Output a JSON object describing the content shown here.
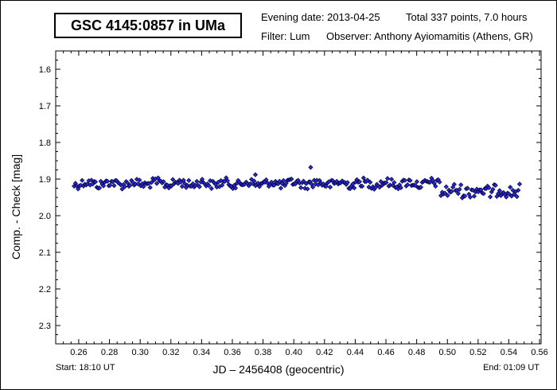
{
  "header": {
    "title": "GSC 4145:0857 in UMa",
    "evening_date": "Evening date: 2013-04-25",
    "total": "Total 337 points, 7.0 hours",
    "filter": "Filter: Lum",
    "observer": "Observer: Anthony Ayiomamitis (Athens, GR)"
  },
  "footer": {
    "start": "Start: 18:10 UT",
    "end": "End: 01:09 UT"
  },
  "colors": {
    "points": "#2b2bd6",
    "point_edge": "#00003a"
  },
  "chart_data": {
    "type": "scatter",
    "title": "GSC 4145:0857 in UMa",
    "xlabel": "JD – 2456408  (geocentric)",
    "ylabel": "Comp. - Check [mag]",
    "xlim": [
      0.245,
      0.561
    ],
    "ylim": [
      1.55,
      2.35
    ],
    "y_inverted": true,
    "grid": false,
    "x_ticks": [
      0.26,
      0.28,
      0.3,
      0.32,
      0.34,
      0.36,
      0.38,
      0.4,
      0.42,
      0.44,
      0.46,
      0.48,
      0.5,
      0.52,
      0.54,
      0.56
    ],
    "x_tick_labels": [
      "0.26",
      "0.28",
      "0.30",
      "0.32",
      "0.34",
      "0.36",
      "0.38",
      "0.40",
      "0.42",
      "0.44",
      "0.46",
      "0.48",
      "0.50",
      "0.52",
      "0.54",
      "0.56"
    ],
    "y_ticks": [
      1.6,
      1.7,
      1.8,
      1.9,
      2.0,
      2.1,
      2.2,
      2.3
    ],
    "y_tick_labels": [
      "1.6",
      "1.7",
      "1.8",
      "1.9",
      "2.0",
      "2.1",
      "2.2",
      "2.3"
    ],
    "series": [
      {
        "segments": [
          {
            "x_start": 0.257,
            "x_end": 0.375,
            "level": 1.912,
            "spread": 0.012
          },
          {
            "x_start": 0.375,
            "x_end": 0.495,
            "level": 1.912,
            "spread": 0.012
          },
          {
            "x_start": 0.495,
            "x_end": 0.547,
            "level": 1.932,
            "spread": 0.018
          }
        ],
        "points_count": 337,
        "outliers": [
          [
            0.375,
            1.888
          ],
          [
            0.411,
            1.868
          ]
        ]
      }
    ]
  }
}
